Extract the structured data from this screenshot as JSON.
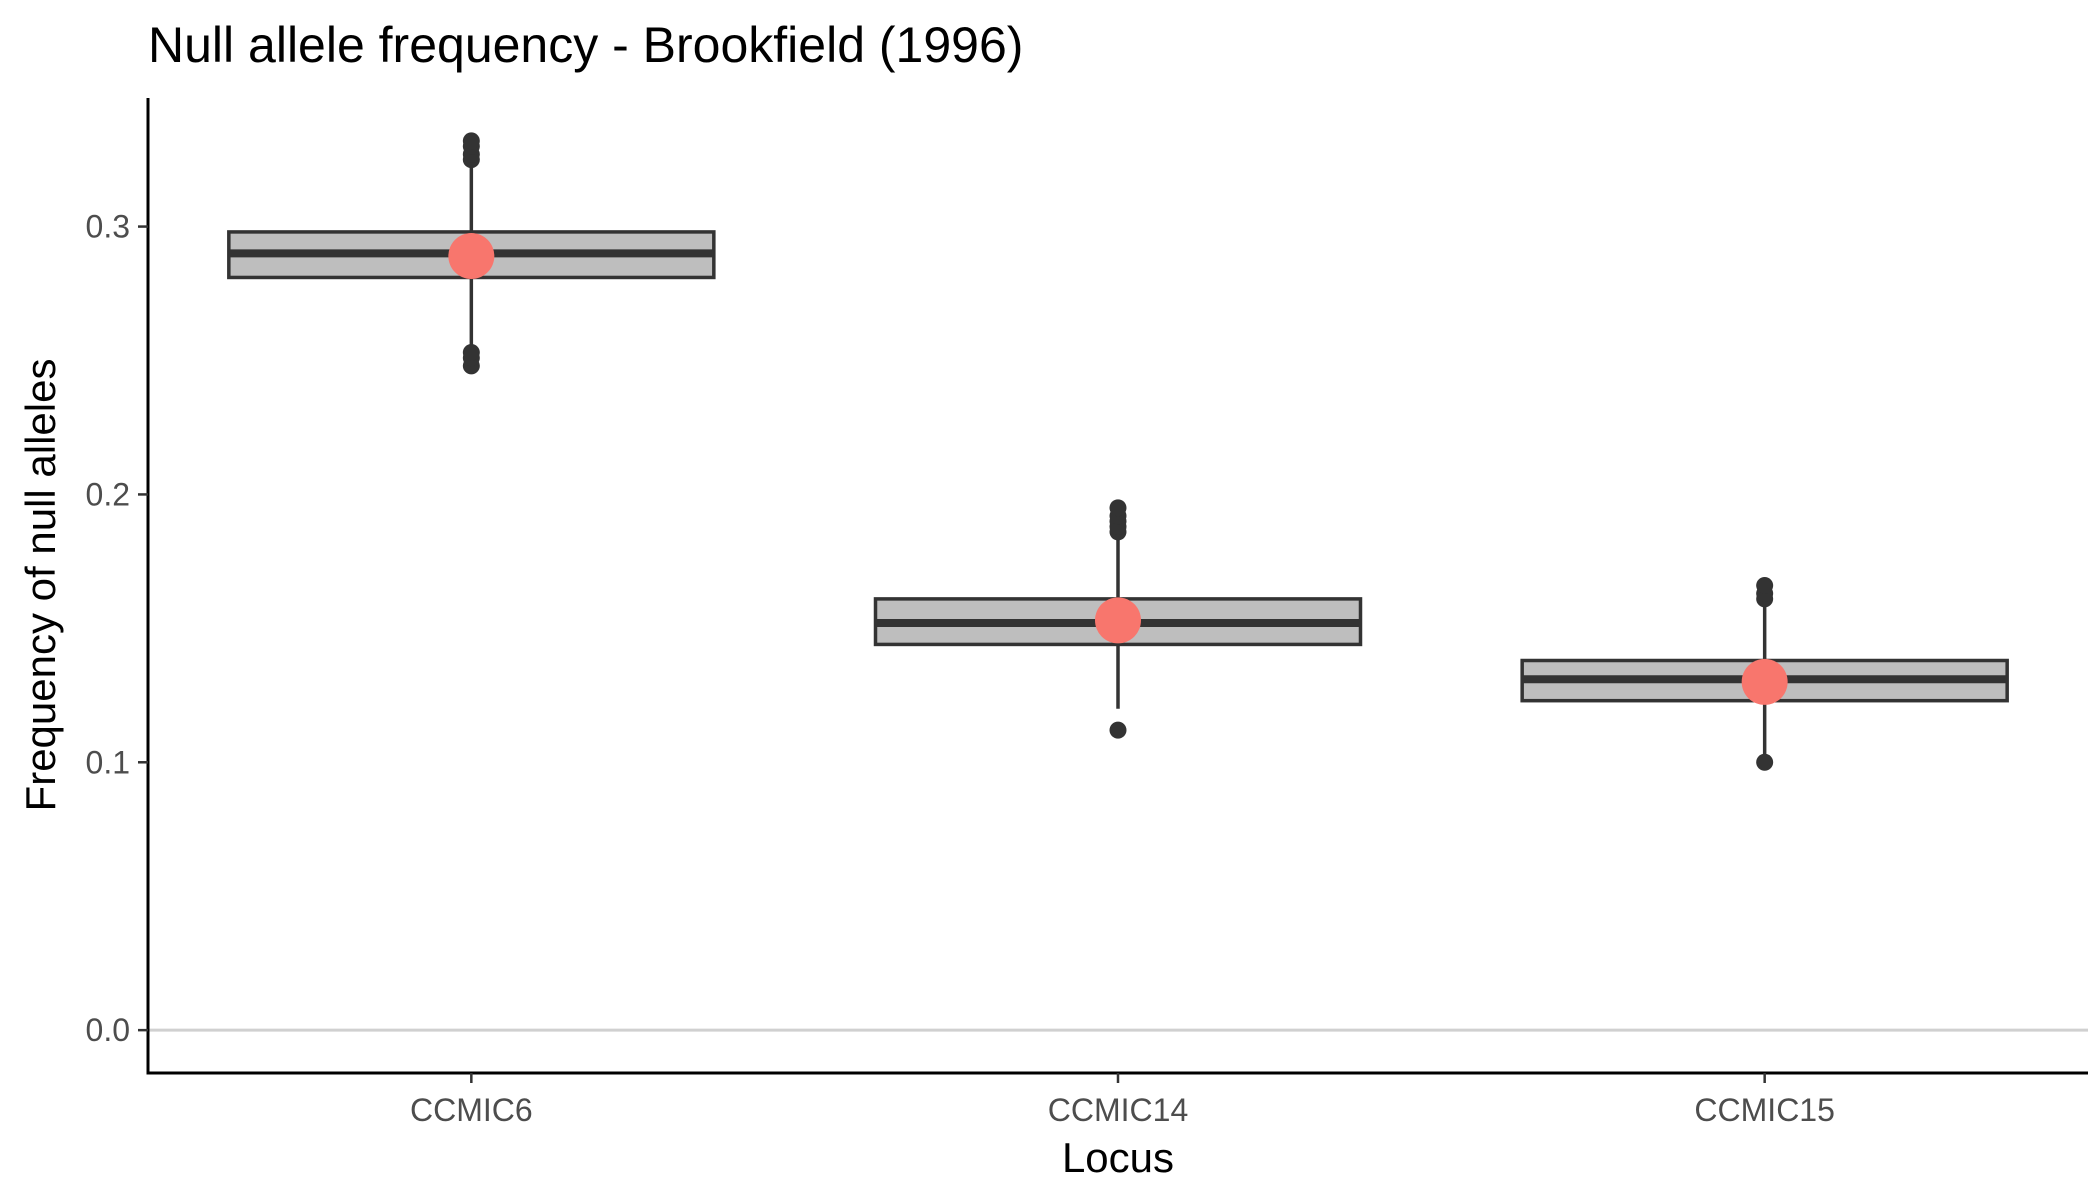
{
  "chart_data": {
    "type": "boxplot",
    "title": "Null allele frequency - Brookfield (1996)",
    "xlabel": "Locus",
    "ylabel": "Frequency of null alleles",
    "ylim": [
      -0.016,
      0.348
    ],
    "yticks": [
      {
        "value": 0.0,
        "label": "0.0"
      },
      {
        "value": 0.1,
        "label": "0.1"
      },
      {
        "value": 0.2,
        "label": "0.2"
      },
      {
        "value": 0.3,
        "label": "0.3"
      }
    ],
    "reference_line": 0.0,
    "grid": false,
    "categories": [
      "CCMIC6",
      "CCMIC14",
      "CCMIC15"
    ],
    "boxes": [
      {
        "category": "CCMIC6",
        "q1": 0.281,
        "median": 0.29,
        "q3": 0.298,
        "whisker_low": 0.254,
        "whisker_high": 0.325,
        "outliers": [
          0.248,
          0.251,
          0.253,
          0.325,
          0.327,
          0.33,
          0.332
        ],
        "point_estimate": 0.289
      },
      {
        "category": "CCMIC14",
        "q1": 0.144,
        "median": 0.152,
        "q3": 0.161,
        "whisker_low": 0.12,
        "whisker_high": 0.185,
        "outliers": [
          0.112,
          0.186,
          0.188,
          0.19,
          0.192,
          0.195
        ],
        "point_estimate": 0.153
      },
      {
        "category": "CCMIC15",
        "q1": 0.123,
        "median": 0.131,
        "q3": 0.138,
        "whisker_low": 0.102,
        "whisker_high": 0.16,
        "outliers": [
          0.1,
          0.161,
          0.163,
          0.166
        ],
        "point_estimate": 0.13
      }
    ],
    "colors": {
      "box_fill": "#bebebe",
      "box_stroke": "#333333",
      "outlier": "#333333",
      "point_estimate": "#f8766d",
      "reference_line": "#d0d0d0"
    }
  }
}
